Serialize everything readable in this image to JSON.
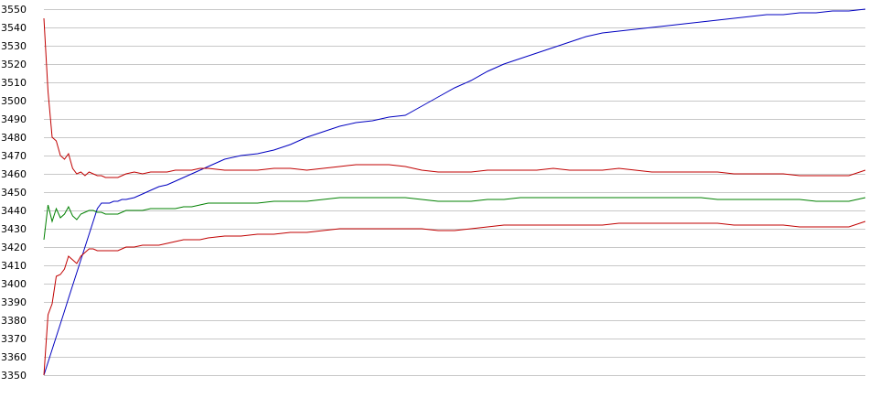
{
  "chart_data": {
    "type": "line",
    "title": "",
    "xlabel": "",
    "ylabel": "",
    "ylim": [
      3350,
      3550
    ],
    "yticks": [
      3350,
      3360,
      3370,
      3380,
      3390,
      3400,
      3410,
      3420,
      3430,
      3440,
      3450,
      3460,
      3470,
      3480,
      3490,
      3500,
      3510,
      3520,
      3530,
      3540,
      3550
    ],
    "grid": true,
    "x": [
      0,
      1,
      2,
      3,
      4,
      5,
      6,
      7,
      8,
      9,
      10,
      11,
      12,
      13,
      14,
      15,
      16,
      17,
      18,
      19,
      20,
      22,
      24,
      26,
      28,
      30,
      32,
      34,
      36,
      38,
      40,
      44,
      48,
      52,
      56,
      60,
      64,
      68,
      72,
      76,
      80,
      84,
      88,
      92,
      96,
      100,
      104,
      108,
      112,
      116,
      120,
      124,
      128,
      132,
      136,
      140,
      144,
      148,
      152,
      156,
      160,
      164,
      168,
      172,
      176,
      180,
      184,
      188,
      192,
      196,
      200
    ],
    "series": [
      {
        "color": "#0000c0",
        "values": [
          3350,
          3357,
          3364,
          3371,
          3378,
          3385,
          3392,
          3399,
          3406,
          3413,
          3420,
          3427,
          3434,
          3441,
          3444,
          3444,
          3444,
          3445,
          3445,
          3446,
          3446,
          3447,
          3449,
          3451,
          3453,
          3454,
          3456,
          3458,
          3460,
          3462,
          3464,
          3468,
          3470,
          3471,
          3473,
          3476,
          3480,
          3483,
          3486,
          3488,
          3489,
          3491,
          3492,
          3497,
          3502,
          3507,
          3511,
          3516,
          3520,
          3523,
          3526,
          3529,
          3532,
          3535,
          3537,
          3538,
          3539,
          3540,
          3541,
          3542,
          3543,
          3544,
          3545,
          3546,
          3547,
          3547,
          3548,
          3548,
          3549,
          3549,
          3550
        ]
      },
      {
        "color": "#c00000",
        "values": [
          3545,
          3505,
          3480,
          3478,
          3470,
          3468,
          3471,
          3463,
          3460,
          3461,
          3459,
          3461,
          3460,
          3459,
          3459,
          3458,
          3458,
          3458,
          3458,
          3459,
          3460,
          3461,
          3460,
          3461,
          3461,
          3461,
          3462,
          3462,
          3462,
          3463,
          3463,
          3462,
          3462,
          3462,
          3463,
          3463,
          3462,
          3463,
          3464,
          3465,
          3465,
          3465,
          3464,
          3462,
          3461,
          3461,
          3461,
          3462,
          3462,
          3462,
          3462,
          3463,
          3462,
          3462,
          3462,
          3463,
          3462,
          3461,
          3461,
          3461,
          3461,
          3461,
          3460,
          3460,
          3460,
          3460,
          3459,
          3459,
          3459,
          3459,
          3462
        ]
      },
      {
        "color": "#008000",
        "values": [
          3424,
          3443,
          3434,
          3441,
          3436,
          3438,
          3442,
          3437,
          3435,
          3438,
          3439,
          3440,
          3440,
          3439,
          3439,
          3438,
          3438,
          3438,
          3438,
          3439,
          3440,
          3440,
          3440,
          3441,
          3441,
          3441,
          3441,
          3442,
          3442,
          3443,
          3444,
          3444,
          3444,
          3444,
          3445,
          3445,
          3445,
          3446,
          3447,
          3447,
          3447,
          3447,
          3447,
          3446,
          3445,
          3445,
          3445,
          3446,
          3446,
          3447,
          3447,
          3447,
          3447,
          3447,
          3447,
          3447,
          3447,
          3447,
          3447,
          3447,
          3447,
          3446,
          3446,
          3446,
          3446,
          3446,
          3446,
          3445,
          3445,
          3445,
          3447
        ]
      },
      {
        "color": "#c00000",
        "values": [
          3350,
          3383,
          3389,
          3404,
          3405,
          3408,
          3415,
          3413,
          3411,
          3415,
          3417,
          3419,
          3419,
          3418,
          3418,
          3418,
          3418,
          3418,
          3418,
          3419,
          3420,
          3420,
          3421,
          3421,
          3421,
          3422,
          3423,
          3424,
          3424,
          3424,
          3425,
          3426,
          3426,
          3427,
          3427,
          3428,
          3428,
          3429,
          3430,
          3430,
          3430,
          3430,
          3430,
          3430,
          3429,
          3429,
          3430,
          3431,
          3432,
          3432,
          3432,
          3432,
          3432,
          3432,
          3432,
          3433,
          3433,
          3433,
          3433,
          3433,
          3433,
          3433,
          3432,
          3432,
          3432,
          3432,
          3431,
          3431,
          3431,
          3431,
          3434
        ]
      }
    ]
  }
}
